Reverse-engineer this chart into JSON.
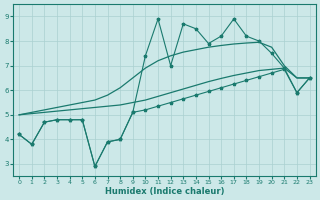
{
  "xlabel": "Humidex (Indice chaleur)",
  "x": [
    0,
    1,
    2,
    3,
    4,
    5,
    6,
    7,
    8,
    9,
    10,
    11,
    12,
    13,
    14,
    15,
    16,
    17,
    18,
    19,
    20,
    21,
    22,
    23
  ],
  "line_main": [
    4.2,
    3.8,
    4.7,
    4.8,
    4.8,
    4.8,
    2.9,
    3.9,
    4.0,
    5.1,
    7.4,
    8.9,
    7.0,
    8.7,
    8.5,
    7.9,
    8.2,
    8.9,
    8.2,
    8.0,
    7.5,
    6.9,
    5.9,
    6.5
  ],
  "line_bottom": [
    4.2,
    3.8,
    4.7,
    4.8,
    4.8,
    4.8,
    2.9,
    3.9,
    4.0,
    5.1,
    5.2,
    5.35,
    5.5,
    5.65,
    5.8,
    5.95,
    6.1,
    6.25,
    6.4,
    6.55,
    6.7,
    6.85,
    5.9,
    6.5
  ],
  "line_reg_high": [
    5.0,
    5.1,
    5.2,
    5.3,
    5.4,
    5.5,
    5.6,
    5.8,
    6.1,
    6.5,
    6.9,
    7.2,
    7.4,
    7.55,
    7.65,
    7.75,
    7.82,
    7.88,
    7.92,
    7.95,
    7.75,
    7.0,
    6.5,
    6.5
  ],
  "line_reg_low": [
    5.0,
    5.05,
    5.1,
    5.15,
    5.2,
    5.25,
    5.3,
    5.35,
    5.4,
    5.5,
    5.6,
    5.75,
    5.9,
    6.05,
    6.2,
    6.35,
    6.48,
    6.6,
    6.7,
    6.8,
    6.85,
    6.9,
    6.5,
    6.5
  ],
  "color": "#1a7a6e",
  "bg_color": "#cce8e8",
  "grid_color": "#aad0d0",
  "xlim": [
    -0.5,
    23.5
  ],
  "ylim": [
    2.5,
    9.5
  ],
  "yticks": [
    3,
    4,
    5,
    6,
    7,
    8,
    9
  ],
  "xticks": [
    0,
    1,
    2,
    3,
    4,
    5,
    6,
    7,
    8,
    9,
    10,
    11,
    12,
    13,
    14,
    15,
    16,
    17,
    18,
    19,
    20,
    21,
    22,
    23
  ]
}
